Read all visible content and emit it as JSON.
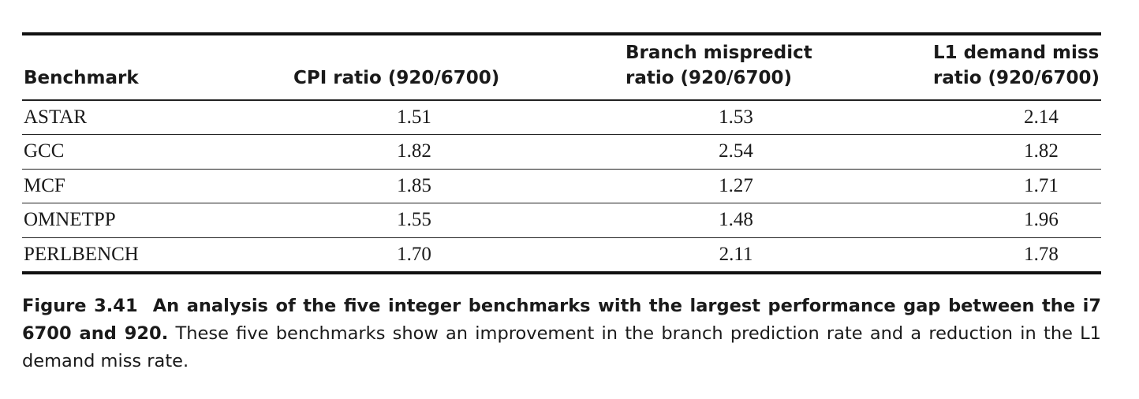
{
  "table": {
    "headers": {
      "benchmark": "Benchmark",
      "cpi": "CPI ratio (920/6700)",
      "branch": "Branch mispredict\nratio (920/6700)",
      "l1": "L1 demand miss\nratio (920/6700)"
    },
    "rows": [
      {
        "benchmark": "ASTAR",
        "cpi": "1.51",
        "branch": "1.53",
        "l1": "2.14"
      },
      {
        "benchmark": "GCC",
        "cpi": "1.82",
        "branch": "2.54",
        "l1": "1.82"
      },
      {
        "benchmark": "MCF",
        "cpi": "1.85",
        "branch": "1.27",
        "l1": "1.71"
      },
      {
        "benchmark": "OMNETPP",
        "cpi": "1.55",
        "branch": "1.48",
        "l1": "1.96"
      },
      {
        "benchmark": "PERLBENCH",
        "cpi": "1.70",
        "branch": "2.11",
        "l1": "1.78"
      }
    ]
  },
  "caption": {
    "label": "Figure 3.41",
    "title": "An analysis of the five integer benchmarks with the largest performance gap between the i7 6700 and 920.",
    "body": "These five benchmarks show an improvement in the branch prediction rate and a reduction in the L1 demand miss rate."
  }
}
